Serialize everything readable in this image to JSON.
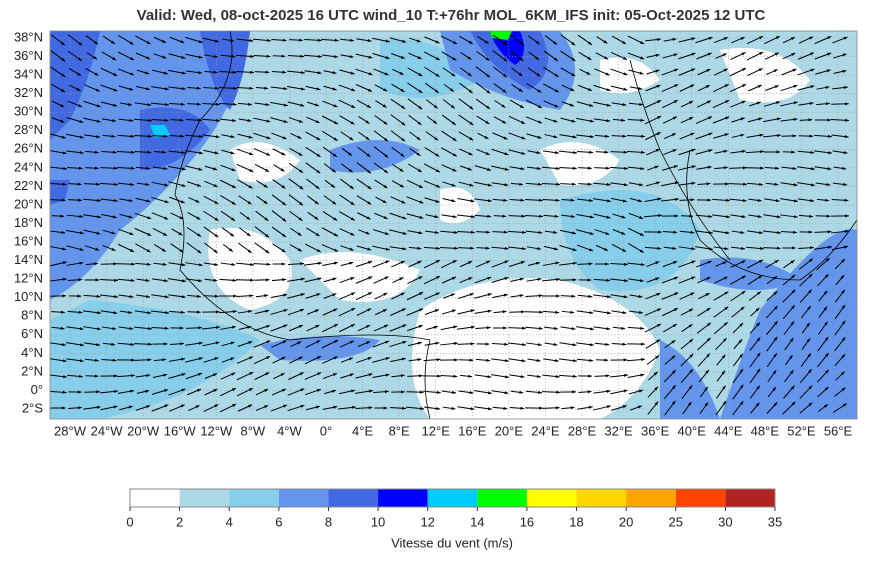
{
  "header": {
    "title": "Valid: Wed, 08-oct-2025   16 UTC   wind_10   T:+76hr   MOL_6KM_IFS   init: 05-Oct-2025    12 UTC"
  },
  "map": {
    "lat_labels": [
      "38°N",
      "36°N",
      "34°N",
      "32°N",
      "30°N",
      "28°N",
      "26°N",
      "24°N",
      "22°N",
      "20°N",
      "18°N",
      "16°N",
      "14°N",
      "12°N",
      "10°N",
      "8°N",
      "6°N",
      "4°N",
      "2°N",
      "0°",
      "2°S"
    ],
    "lon_labels": [
      "28°W",
      "24°W",
      "20°W",
      "16°W",
      "12°W",
      "8°W",
      "4°W",
      "0°",
      "4°E",
      "8°E",
      "12°E",
      "16°E",
      "20°E",
      "24°E",
      "28°E",
      "32°E",
      "36°E",
      "40°E",
      "44°E",
      "48°E",
      "52°E",
      "56°E"
    ]
  },
  "colorbar": {
    "ticks": [
      0,
      2,
      4,
      6,
      8,
      10,
      12,
      14,
      16,
      18,
      20,
      25,
      30,
      35
    ],
    "colors": [
      "#ffffff",
      "#add8e6",
      "#87ceeb",
      "#6495ed",
      "#4169e1",
      "#0000ff",
      "#00ccff",
      "#00ff00",
      "#ffff00",
      "#ffd700",
      "#ffa500",
      "#ff4500",
      "#b22222"
    ],
    "label": "Vitesse du vent (m/s)"
  }
}
